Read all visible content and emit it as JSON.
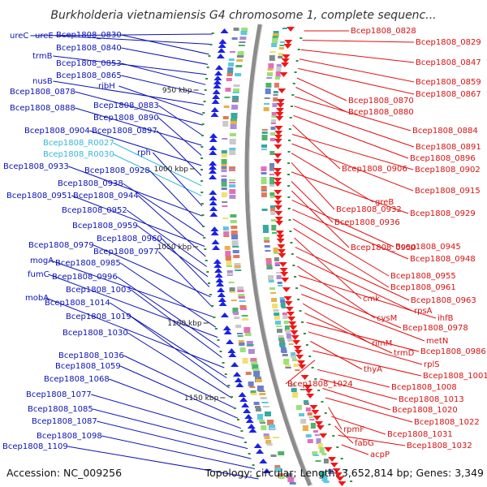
{
  "title": "Burkholderia vietnamiensis G4 chromosome 1, complete sequenc...",
  "footer": {
    "accession": "Accession: NC_009256",
    "topology": "Topology: circular; Length: 3,652,814 bp; Genes: 3,349"
  },
  "scale_labels": [
    "950 kbp",
    "1000 kbp",
    "1050 kbp",
    "1100 kbp",
    "1150 kbp"
  ],
  "left_genes": [
    {
      "text": "ureC",
      "color": "blue"
    },
    {
      "text": "ureE",
      "color": "blue"
    },
    {
      "text": "Bcep1808_0830",
      "color": "blue"
    },
    {
      "text": "Bcep1808_0840",
      "color": "blue"
    },
    {
      "text": "trmB",
      "color": "blue"
    },
    {
      "text": "Bcep1808_0853",
      "color": "blue"
    },
    {
      "text": "Bcep1808_0865",
      "color": "blue"
    },
    {
      "text": "nusB",
      "color": "blue"
    },
    {
      "text": "ribH",
      "color": "blue"
    },
    {
      "text": "Bcep1808_0878",
      "color": "blue"
    },
    {
      "text": "Bcep1808_0883",
      "color": "blue"
    },
    {
      "text": "Bcep1808_0888",
      "color": "blue"
    },
    {
      "text": "Bcep1808_0890",
      "color": "blue"
    },
    {
      "text": "Bcep1808_0904",
      "color": "blue"
    },
    {
      "text": "Bcep1808_0897",
      "color": "blue"
    },
    {
      "text": "Bcep1808_R0027",
      "color": "cyan"
    },
    {
      "text": "Bcep1808_R0030",
      "color": "cyan"
    },
    {
      "text": "rph",
      "color": "blue"
    },
    {
      "text": "Bcep1808_0933",
      "color": "blue"
    },
    {
      "text": "Bcep1808_0928",
      "color": "blue"
    },
    {
      "text": "Bcep1808_0938",
      "color": "blue"
    },
    {
      "text": "Bcep1808_0951",
      "color": "blue"
    },
    {
      "text": "Bcep1808_0944",
      "color": "blue"
    },
    {
      "text": "Bcep1808_0952",
      "color": "blue"
    },
    {
      "text": "Bcep1808_0959",
      "color": "blue"
    },
    {
      "text": "Bcep1808_0960",
      "color": "blue"
    },
    {
      "text": "Bcep1808_0979",
      "color": "blue"
    },
    {
      "text": "Bcep1808_0977",
      "color": "blue"
    },
    {
      "text": "mogA",
      "color": "blue"
    },
    {
      "text": "Bcep1808_0985",
      "color": "blue"
    },
    {
      "text": "fumC",
      "color": "blue"
    },
    {
      "text": "Bcep1808_0996",
      "color": "blue"
    },
    {
      "text": "Bcep1808_1003",
      "color": "blue"
    },
    {
      "text": "mobA",
      "color": "blue"
    },
    {
      "text": "Bcep1808_1014",
      "color": "blue"
    },
    {
      "text": "Bcep1808_1019",
      "color": "blue"
    },
    {
      "text": "Bcep1808_1030",
      "color": "blue"
    },
    {
      "text": "Bcep1808_1036",
      "color": "blue"
    },
    {
      "text": "Bcep1808_1059",
      "color": "blue"
    },
    {
      "text": "Bcep1808_1068",
      "color": "blue"
    },
    {
      "text": "Bcep1808_1077",
      "color": "blue"
    },
    {
      "text": "Bcep1808_1085",
      "color": "blue"
    },
    {
      "text": "Bcep1808_1087",
      "color": "blue"
    },
    {
      "text": "Bcep1808_1098",
      "color": "blue"
    },
    {
      "text": "Bcep1808_1109",
      "color": "blue"
    }
  ],
  "right_genes": [
    {
      "text": "Bcep1808_0828"
    },
    {
      "text": "Bcep1808_0829"
    },
    {
      "text": "Bcep1808_0847"
    },
    {
      "text": "Bcep1808_0859"
    },
    {
      "text": "Bcep1808_0867"
    },
    {
      "text": "Bcep1808_0870"
    },
    {
      "text": "Bcep1808_0880"
    },
    {
      "text": "Bcep1808_0884"
    },
    {
      "text": "Bcep1808_0891"
    },
    {
      "text": "Bcep1808_0896"
    },
    {
      "text": "Bcep1808_0906"
    },
    {
      "text": "Bcep1808_0902"
    },
    {
      "text": "Bcep1808_0915"
    },
    {
      "text": "greB"
    },
    {
      "text": "Bcep1808_0932"
    },
    {
      "text": "Bcep1808_0929"
    },
    {
      "text": "Bcep1808_0936"
    },
    {
      "text": "Bcep1808_0950"
    },
    {
      "text": "Bcep1808_0945"
    },
    {
      "text": "Bcep1808_0948"
    },
    {
      "text": "Bcep1808_0955"
    },
    {
      "text": "Bcep1808_0961"
    },
    {
      "text": "cmk"
    },
    {
      "text": "Bcep1808_0963"
    },
    {
      "text": "rpsA"
    },
    {
      "text": "cysM"
    },
    {
      "text": "ihfB"
    },
    {
      "text": "Bcep1808_0978"
    },
    {
      "text": "metN"
    },
    {
      "text": "rimM"
    },
    {
      "text": "trmD"
    },
    {
      "text": "Bcep1808_0986"
    },
    {
      "text": "rplS"
    },
    {
      "text": "thyA"
    },
    {
      "text": "Bcep1808_1001"
    },
    {
      "text": "Bcep1808_1024"
    },
    {
      "text": "Bcep1808_1008"
    },
    {
      "text": "Bcep1808_1013"
    },
    {
      "text": "Bcep1808_1020"
    },
    {
      "text": "Bcep1808_1022"
    },
    {
      "text": "rpmF"
    },
    {
      "text": "Bcep1808_1031"
    },
    {
      "text": "fabG"
    },
    {
      "text": "Bcep1808_1032"
    },
    {
      "text": "acpP"
    }
  ]
}
